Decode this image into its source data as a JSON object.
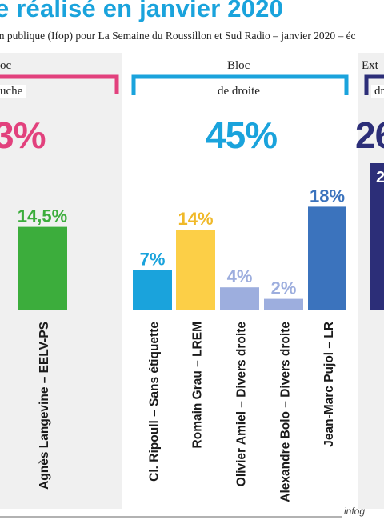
{
  "header": {
    "title": "e réalisé en janvier 2020",
    "subtitle": "on publique (Ifop) pour La Semaine du Roussillon et Sud Radio – janvier 2020 – éc"
  },
  "blocks": {
    "left": {
      "title": "oc",
      "sub": "uche",
      "pct": "3%",
      "color": "#e2417d"
    },
    "center": {
      "title": "Bloc",
      "sub": "de droite",
      "pct": "45%",
      "color": "#1aa3dc"
    },
    "right": {
      "title": "Ext",
      "sub": "dr",
      "pct": "26",
      "color": "#2c2e78",
      "bar_label": "2"
    }
  },
  "footer": {
    "credit": "infog"
  },
  "chart_data": {
    "type": "bar",
    "ylim": [
      0,
      30
    ],
    "categories": [
      "Agnès Langevine – EELV-PS",
      "Cl. Ripoull – Sans étiquette",
      "Romain Grau – LREM",
      "Olivier Amiel – Divers droite",
      "Alexandre Bolo – Divers droite",
      "Jean-Marc Pujol – LR"
    ],
    "values": [
      14.5,
      7,
      14,
      4,
      2,
      18
    ],
    "labels": [
      "14,5%",
      "7%",
      "14%",
      "4%",
      "2%",
      "18%"
    ],
    "colors": [
      "#3cad3c",
      "#1aa3dc",
      "#fccf47",
      "#9daede",
      "#9daede",
      "#3b73bd"
    ],
    "label_colors": [
      "#3cad3c",
      "#1aa3dc",
      "#f0b92a",
      "#9daede",
      "#9daede",
      "#3b73bd"
    ]
  }
}
